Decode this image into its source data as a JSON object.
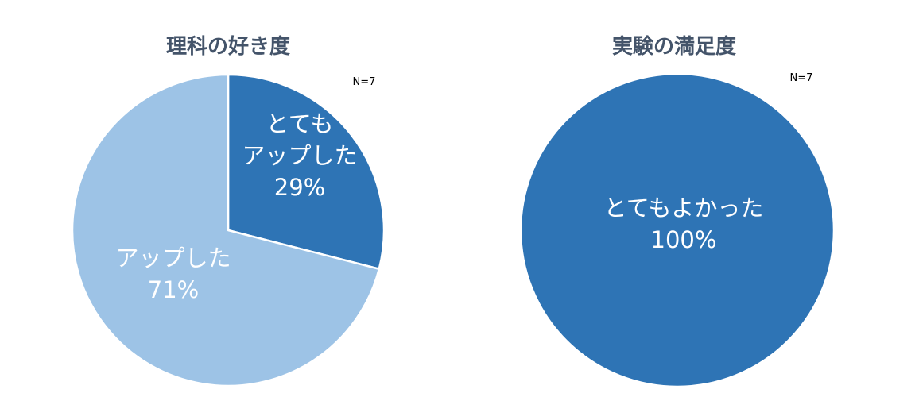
{
  "chart_data": [
    {
      "type": "pie",
      "title": "理科の好き度",
      "note": "N=7",
      "start_angle_deg": 0,
      "slices": [
        {
          "name": "とても\nアップした",
          "value": 29,
          "value_label": "29%",
          "color": "#2e74b5"
        },
        {
          "name": "アップした",
          "value": 71,
          "value_label": "71%",
          "color": "#9dc3e6"
        }
      ]
    },
    {
      "type": "pie",
      "title": "実験の満足度",
      "note": "N=7",
      "start_angle_deg": 0,
      "slices": [
        {
          "name": "とてもよかった",
          "value": 100,
          "value_label": "100%",
          "color": "#2e74b5"
        }
      ]
    }
  ]
}
